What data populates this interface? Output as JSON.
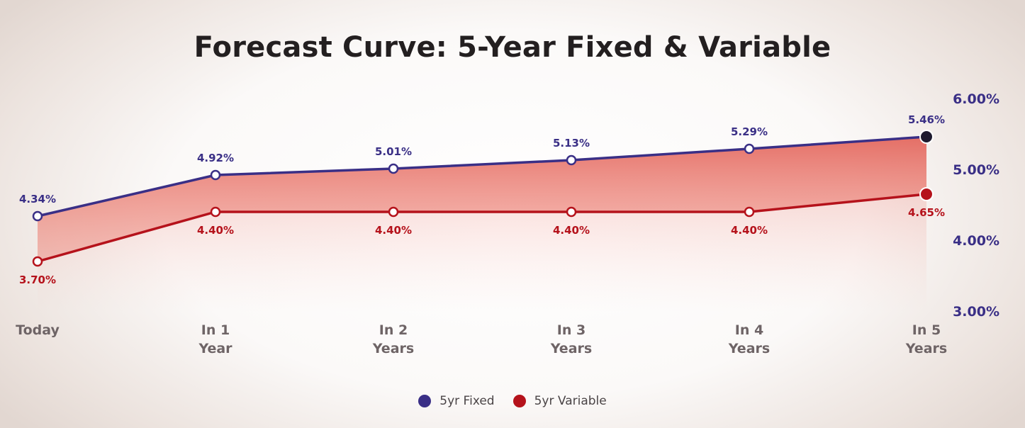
{
  "chart_data": {
    "type": "line",
    "title": "Forecast Curve: 5-Year Fixed & Variable",
    "categories": [
      "Today",
      "In 1 Year",
      "In 2 Years",
      "In 3 Years",
      "In 4 Years",
      "In 5 Years"
    ],
    "category_lines": [
      [
        "Today"
      ],
      [
        "In 1",
        "Year"
      ],
      [
        "In 2",
        "Years"
      ],
      [
        "In 3",
        "Years"
      ],
      [
        "In 4",
        "Years"
      ],
      [
        "In 5",
        "Years"
      ]
    ],
    "series": [
      {
        "name": "5yr Fixed",
        "values": [
          4.34,
          4.92,
          5.01,
          5.13,
          5.29,
          5.46
        ],
        "labels": [
          "4.34%",
          "4.92%",
          "5.01%",
          "5.13%",
          "5.29%",
          "5.46%"
        ],
        "color": "#3a2f86"
      },
      {
        "name": "5yr Variable",
        "values": [
          3.7,
          4.4,
          4.4,
          4.4,
          4.4,
          4.65
        ],
        "labels": [
          "3.70%",
          "4.40%",
          "4.40%",
          "4.40%",
          "4.40%",
          "4.65%"
        ],
        "color": "#b5121b"
      }
    ],
    "ylim": [
      3.0,
      6.0
    ],
    "yticks": [
      6.0,
      5.0,
      4.0,
      3.0
    ],
    "ytick_labels": [
      "6.00%",
      "5.00%",
      "4.00%",
      "3.00%"
    ],
    "y_axis_side": "right",
    "grid": false,
    "legend": "bottom-center",
    "fill_between_color": "#e0544a"
  }
}
